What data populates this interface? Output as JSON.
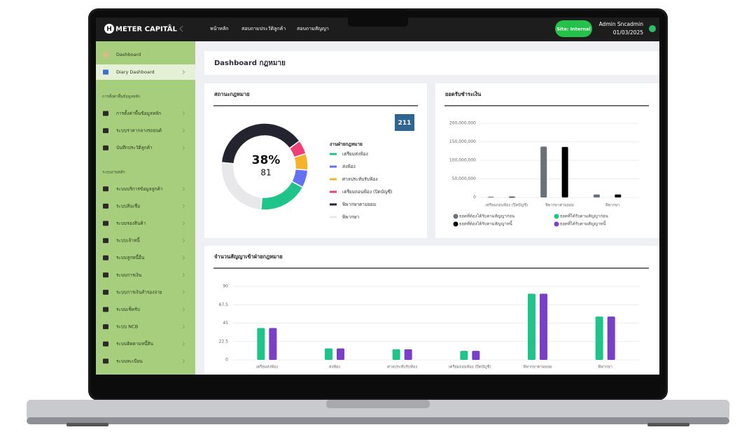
{
  "header": {
    "logo_letter": "H",
    "brand": "METER CAPITAL",
    "registered": "®",
    "nav": [
      "หน้าหลัก",
      "สอบถามประวัติลูกค้า",
      "สอบถามสัญญา"
    ],
    "site": "Site: Internal",
    "user": "Admin Sncadmin",
    "date": "01/03/2025"
  },
  "sidebar": {
    "top_items": [
      "Dashboard",
      "Diary Dashboard"
    ],
    "sections": [
      {
        "title": "การตั้งค่าพื้นข้อมูลหลัก",
        "items": [
          "การตั้งค่าพื้นข้อมูลหลัก",
          "ระบบราคากลางรถยนต์",
          "บันทึกประวัติลูกค้า"
        ]
      },
      {
        "title": "ระบบงานหลัก",
        "items": [
          "ระบบบริการข้อมูลลูกค้า",
          "ระบบสินเชื่อ",
          "ระบบรองสินค้า",
          "ระบบเจ้าหนี้",
          "ระบบลูกหนี้อื่น",
          "ระบบการเงิน",
          "ระบบการเงินสำรองจ่าย",
          "ระบบเช็ครับ",
          "ระบบ NCB",
          "ระบบติดตามหนี้สิน",
          "ระบบทะเบียน"
        ]
      }
    ]
  },
  "page_title": "Dashboard กฎหมาย",
  "chart_data": [
    {
      "type": "doughnut",
      "title": "สถานะกฎหมาย",
      "total": 211,
      "center_label": "38%",
      "center_value": 81,
      "legend_title": "งานฝ่ายกฎหมาย",
      "categories": [
        "เตรียมส่งฟ้อง",
        "ส่งฟ้อง",
        "ศาลประทับรับฟ้อง",
        "เตรียมถอนฟ้อง (ปิดบัญชี)",
        "พิพากษาตามยอม",
        "พิพากษา"
      ],
      "values": [
        39,
        14,
        13,
        11,
        81,
        53
      ],
      "colors": [
        "#1fc48b",
        "#6472f0",
        "#f7b22c",
        "#ef3f79",
        "#23242f",
        "#e8e8eb"
      ]
    },
    {
      "type": "bar",
      "title": "ยอดรับชำระเงิน",
      "categories": [
        "เตรียมถอนฟ้อง (ปิดบัญชี)",
        "พิพากษาตามยอม",
        "พิพากษา"
      ],
      "series": [
        {
          "name": "ยอดที่ต้องได้รับตามสัญญาก่อน",
          "color": "#6b7179",
          "values": [
            2000000,
            137000000,
            8000000
          ]
        },
        {
          "name": "ยอดที่ได้รับตามสัญญาก่อน",
          "color": "#1fc48b",
          "values": [
            0,
            0,
            0
          ]
        },
        {
          "name": "ยอดที่ต้องได้รับตามสัญญาหนี้",
          "color": "#000000",
          "values": [
            2000000,
            136000000,
            8000000
          ]
        },
        {
          "name": "ยอดที่ได้รับตามสัญญาหนี้",
          "color": "#7a3fc9",
          "values": [
            0,
            0,
            0
          ]
        }
      ],
      "ylim": [
        0,
        200000000
      ],
      "yticks": [
        0,
        {
          "value": 50000000,
          "label": "50,000,000"
        },
        {
          "value": 100000000,
          "label": "100,000,000"
        },
        {
          "value": 150000000,
          "label": "150,000,000"
        },
        {
          "value": 200000000,
          "label": "200,000,000"
        }
      ],
      "grid": true
    },
    {
      "type": "bar",
      "title": "จำนวนสัญญาเข้าฝ่ายกฎหมาย",
      "categories": [
        "เตรียมส่งฟ้อง",
        "ส่งฟ้อง",
        "ศาลประทับรับฟ้อง",
        "เตรียมถอนฟ้อง (ปิดบัญชี)",
        "พิพากษาตามยอม",
        "พิพากษา"
      ],
      "series": [
        {
          "color": "#1fc48b",
          "values": [
            39,
            14,
            13,
            11,
            81,
            53
          ]
        },
        {
          "color": "#7a3fc9",
          "values": [
            39,
            14,
            13,
            11,
            81,
            53
          ]
        }
      ],
      "ylim": [
        0,
        90
      ],
      "yticks": [
        0,
        22.5,
        45,
        67.5,
        90
      ],
      "grid": true
    }
  ]
}
